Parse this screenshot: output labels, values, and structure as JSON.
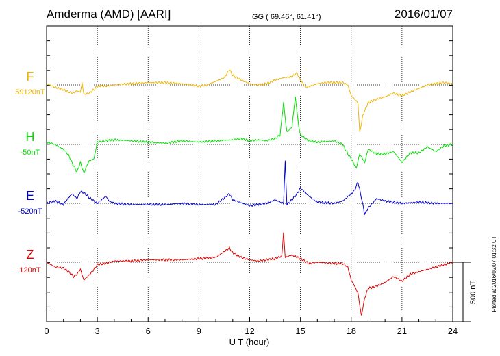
{
  "header": {
    "station": "Amderma (AMD)  [AARI]",
    "coords": "GG ( 69.46°,  61.41°)",
    "date": "2016/01/07"
  },
  "footer_note": "Plotted at 2016/02/07 01:32 UT",
  "chart_data": {
    "type": "line",
    "xlabel": "U T (hour)",
    "xlim": [
      0,
      24
    ],
    "xticks": [
      0,
      3,
      6,
      9,
      12,
      15,
      18,
      21,
      24
    ],
    "scale_bar_label": "500 nT",
    "scale_bar_nT": 500,
    "grid": true,
    "series": [
      {
        "name": "F",
        "baseline": "59120nT",
        "color": "#f0b400",
        "x": [
          0,
          0.5,
          1,
          1.3,
          1.6,
          1.8,
          2.0,
          2.1,
          2.2,
          2.5,
          2.8,
          3,
          3.5,
          4,
          5,
          6,
          7,
          8,
          9,
          9.5,
          10,
          10.5,
          10.8,
          11,
          11.5,
          12,
          12.5,
          13,
          13.5,
          14,
          14.5,
          14.8,
          15,
          15.3,
          15.6,
          16,
          16.5,
          17,
          17.5,
          17.8,
          18,
          18.2,
          18.4,
          18.5,
          18.7,
          19,
          19.5,
          20,
          20.5,
          21,
          21.5,
          22,
          22.5,
          23,
          23.5,
          24
        ],
        "y": [
          10,
          -20,
          -40,
          -60,
          -70,
          -50,
          -60,
          20,
          -80,
          -70,
          -40,
          -10,
          -10,
          0,
          10,
          20,
          20,
          10,
          -10,
          0,
          30,
          60,
          130,
          80,
          40,
          10,
          0,
          10,
          40,
          60,
          70,
          100,
          40,
          -20,
          -10,
          10,
          20,
          20,
          20,
          0,
          -90,
          -120,
          -150,
          -400,
          -250,
          -150,
          -120,
          -100,
          -70,
          -90,
          -60,
          -30,
          0,
          10,
          20,
          10
        ]
      },
      {
        "name": "H",
        "baseline": "-50nT",
        "color": "#00e000",
        "x": [
          0,
          0.5,
          1,
          1.3,
          1.6,
          1.8,
          2.0,
          2.2,
          2.5,
          2.8,
          3,
          3.5,
          4,
          5,
          6,
          7,
          8,
          9,
          10,
          11,
          11.5,
          12,
          12.5,
          13,
          13.5,
          13.8,
          14,
          14.2,
          14.5,
          14.7,
          14.9,
          15,
          15.5,
          16,
          17,
          17.5,
          17.8,
          18,
          18.3,
          18.5,
          18.8,
          19,
          19.5,
          20,
          20.5,
          21,
          21.5,
          22,
          22.5,
          23,
          23.5,
          24
        ],
        "y": [
          20,
          0,
          -40,
          -90,
          -180,
          -230,
          -150,
          -240,
          -140,
          -120,
          20,
          30,
          40,
          30,
          20,
          10,
          30,
          20,
          30,
          40,
          50,
          30,
          40,
          30,
          50,
          80,
          350,
          100,
          150,
          400,
          150,
          80,
          30,
          20,
          30,
          0,
          -80,
          -120,
          -200,
          -80,
          -150,
          -40,
          -80,
          -80,
          -60,
          -150,
          -70,
          -70,
          -20,
          -60,
          -10,
          0
        ]
      },
      {
        "name": "E",
        "baseline": "-520nT",
        "color": "#0000d0",
        "x": [
          0,
          0.5,
          1,
          1.2,
          1.5,
          1.8,
          2.0,
          2.2,
          2.5,
          3,
          3.5,
          3.7,
          4,
          5,
          6,
          7,
          8,
          9,
          10,
          10.8,
          11,
          12,
          12.5,
          13,
          13.5,
          14,
          14.1,
          14.2,
          14.5,
          14.8,
          15,
          15.5,
          16,
          17,
          17.5,
          18,
          18.2,
          18.4,
          18.6,
          18.8,
          19,
          19.5,
          20,
          21,
          22,
          23,
          24
        ],
        "y": [
          0,
          20,
          -10,
          30,
          80,
          40,
          100,
          90,
          50,
          0,
          60,
          20,
          0,
          -10,
          -10,
          -10,
          0,
          -10,
          -10,
          80,
          30,
          -20,
          -10,
          0,
          30,
          0,
          350,
          -10,
          30,
          80,
          130,
          60,
          10,
          0,
          20,
          80,
          110,
          180,
          50,
          -90,
          -40,
          40,
          20,
          0,
          10,
          0,
          0
        ]
      },
      {
        "name": "Z",
        "baseline": "120nT",
        "color": "#e00000",
        "x": [
          0,
          0.5,
          1,
          1.3,
          1.6,
          1.8,
          2.0,
          2.2,
          2.5,
          2.8,
          3,
          3.5,
          4,
          5,
          6,
          7,
          8,
          9,
          10,
          10.8,
          11,
          11.5,
          12,
          12.5,
          13,
          13.5,
          13.9,
          14,
          14.1,
          14.5,
          15,
          15.5,
          16,
          17,
          17.5,
          17.8,
          18,
          18.2,
          18.4,
          18.6,
          18.8,
          19,
          19.5,
          20,
          20.5,
          21,
          21.5,
          22,
          22.5,
          23,
          23.5,
          24
        ],
        "y": [
          0,
          -40,
          -50,
          -80,
          -120,
          -100,
          -60,
          -150,
          -110,
          -60,
          -20,
          -10,
          10,
          10,
          20,
          20,
          20,
          30,
          40,
          120,
          80,
          40,
          20,
          10,
          20,
          30,
          50,
          250,
          40,
          60,
          30,
          -10,
          0,
          -10,
          -10,
          -40,
          -150,
          -200,
          -260,
          -450,
          -300,
          -220,
          -200,
          -170,
          -120,
          -160,
          -100,
          -80,
          -60,
          -40,
          -20,
          0
        ]
      }
    ]
  }
}
